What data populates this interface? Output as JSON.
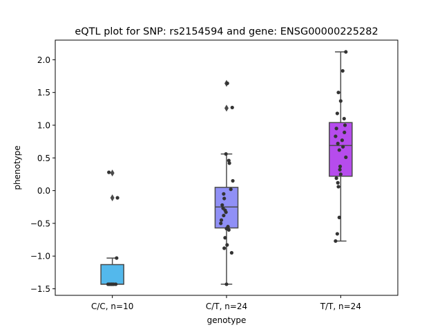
{
  "chart_data": {
    "type": "box",
    "title": "eQTL plot for SNP: rs2154594 and gene: ENSG00000225282",
    "xlabel": "genotype",
    "ylabel": "phenotype",
    "ylim": [
      -1.6,
      2.3
    ],
    "yticks": [
      -1.5,
      -1.0,
      -0.5,
      0.0,
      0.5,
      1.0,
      1.5,
      2.0
    ],
    "ytick_labels": [
      "−1.5",
      "−1.0",
      "−0.5",
      "0.0",
      "0.5",
      "1.0",
      "1.5",
      "2.0"
    ],
    "grid": false,
    "categories": [
      "C/C, n=10",
      "C/T, n=24",
      "T/T, n=24"
    ],
    "colors": [
      "#53b8ec",
      "#9090f6",
      "#b64ced"
    ],
    "edge_color": "#4a4a4a",
    "point_color": "#333333",
    "boxes": [
      {
        "q1": -1.43,
        "median": -1.43,
        "q3": -1.13,
        "whisker_low": -1.43,
        "whisker_high": -1.03,
        "outliers": [
          0.27,
          -0.11
        ]
      },
      {
        "q1": -0.57,
        "median": -0.25,
        "q3": 0.05,
        "whisker_low": -1.43,
        "whisker_high": 0.56,
        "outliers": [
          1.64,
          1.26
        ]
      },
      {
        "q1": 0.22,
        "median": 0.69,
        "q3": 1.04,
        "whisker_low": -0.77,
        "whisker_high": 2.12,
        "outliers": []
      }
    ],
    "points": [
      [
        [
          -0.12,
          0.28
        ],
        [
          0.18,
          -0.11
        ],
        [
          0.15,
          -1.03
        ],
        [
          -0.15,
          -1.43
        ],
        [
          -0.1,
          -1.43
        ],
        [
          -0.05,
          -1.43
        ],
        [
          0.0,
          -1.43
        ],
        [
          0.05,
          -1.43
        ],
        [
          0.12,
          -1.43
        ],
        [
          -0.02,
          -1.43
        ]
      ],
      [
        [
          0.03,
          1.64
        ],
        [
          0.2,
          1.27
        ],
        [
          -0.02,
          0.56
        ],
        [
          0.08,
          0.46
        ],
        [
          0.1,
          0.42
        ],
        [
          0.22,
          0.15
        ],
        [
          0.15,
          0.02
        ],
        [
          -0.1,
          -0.05
        ],
        [
          -0.08,
          -0.12
        ],
        [
          -0.15,
          -0.22
        ],
        [
          -0.12,
          -0.27
        ],
        [
          -0.05,
          -0.3
        ],
        [
          -0.02,
          -0.33
        ],
        [
          -0.1,
          -0.38
        ],
        [
          -0.18,
          -0.45
        ],
        [
          -0.2,
          -0.5
        ],
        [
          0.05,
          -0.55
        ],
        [
          0.0,
          -0.58
        ],
        [
          0.08,
          -0.6
        ],
        [
          -0.05,
          -0.72
        ],
        [
          0.02,
          -0.83
        ],
        [
          -0.08,
          -0.88
        ],
        [
          0.18,
          -0.95
        ],
        [
          0.0,
          -1.43
        ]
      ],
      [
        [
          0.18,
          2.12
        ],
        [
          0.07,
          1.83
        ],
        [
          -0.08,
          1.5
        ],
        [
          0.0,
          1.37
        ],
        [
          -0.12,
          1.18
        ],
        [
          0.12,
          1.1
        ],
        [
          0.15,
          1.0
        ],
        [
          -0.15,
          0.95
        ],
        [
          0.13,
          0.89
        ],
        [
          -0.18,
          0.83
        ],
        [
          0.05,
          0.77
        ],
        [
          -0.1,
          0.72
        ],
        [
          0.08,
          0.67
        ],
        [
          -0.05,
          0.62
        ],
        [
          0.18,
          0.51
        ],
        [
          -0.02,
          0.37
        ],
        [
          -0.03,
          0.32
        ],
        [
          0.0,
          0.25
        ],
        [
          -0.15,
          0.19
        ],
        [
          -0.1,
          0.12
        ],
        [
          -0.08,
          0.06
        ],
        [
          -0.05,
          -0.41
        ],
        [
          -0.12,
          -0.66
        ],
        [
          -0.18,
          -0.77
        ]
      ]
    ]
  }
}
